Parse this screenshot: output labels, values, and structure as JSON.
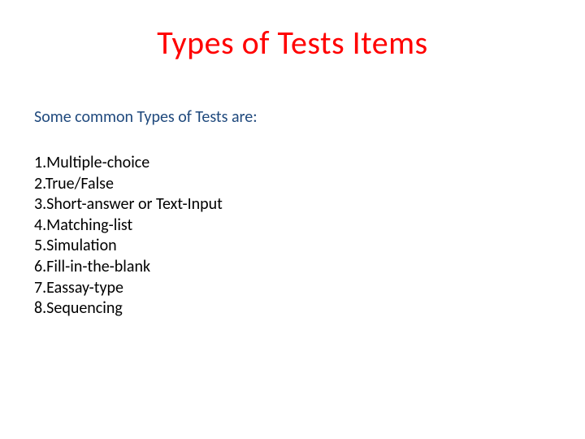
{
  "title": {
    "text": "Types of Tests Items",
    "color": "#ff0000",
    "fontsize": 40
  },
  "subtitle": {
    "text": "Some common Types of Tests are:",
    "color": "#1f497d",
    "fontsize": 20
  },
  "list": {
    "color": "#000000",
    "fontsize": 20,
    "items": [
      "1.Multiple-choice",
      "2.True/False",
      "3.Short-answer or Text-Input",
      "4.Matching-list",
      "5.Simulation",
      "6.Fill-in-the-blank",
      "7.Eassay-type",
      "8.Sequencing"
    ]
  },
  "background_color": "#ffffff"
}
